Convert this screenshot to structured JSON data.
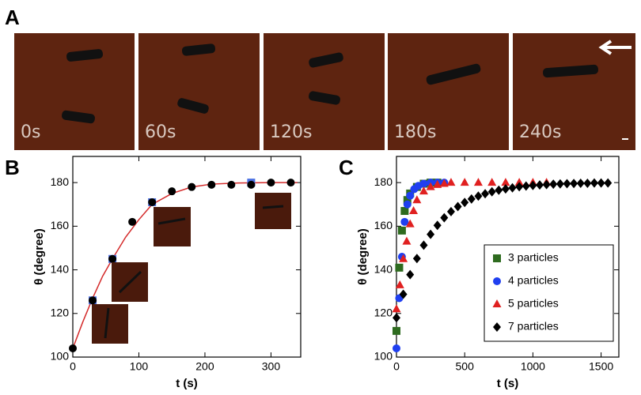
{
  "panel_labels": [
    "A",
    "B",
    "C"
  ],
  "frames": [
    "0s",
    "60s",
    "120s",
    "180s",
    "240s"
  ],
  "chart_data": [
    {
      "type": "scatter",
      "xlabel": "t (s)",
      "ylabel": "θ (degree)",
      "xlim": [
        0,
        345
      ],
      "ylim": [
        100,
        192
      ],
      "xticks": [
        0,
        100,
        200,
        300
      ],
      "yticks": [
        100,
        120,
        140,
        160,
        180
      ],
      "series": [
        {
          "color": "#d42a2a",
          "style": "line",
          "x": [
            0,
            15,
            30,
            45,
            60,
            80,
            100,
            120,
            150,
            180,
            210,
            250,
            300,
            340
          ],
          "values": [
            104,
            116,
            127,
            137,
            145,
            155,
            163,
            170,
            175,
            178,
            179.3,
            179.8,
            180,
            180
          ]
        },
        {
          "color": "#4a6fe3",
          "marker": "square",
          "x": [
            30,
            60,
            120,
            270
          ],
          "values": [
            126,
            145,
            171,
            180
          ]
        },
        {
          "color": "#000000",
          "marker": "circle",
          "x": [
            0,
            30,
            60,
            90,
            120,
            150,
            180,
            210,
            240,
            270,
            300,
            330
          ],
          "values": [
            104,
            126,
            145,
            162,
            171,
            176,
            178,
            179,
            179,
            179,
            180,
            180
          ]
        }
      ]
    },
    {
      "type": "scatter",
      "xlabel": "t (s)",
      "ylabel": "θ (degree)",
      "xlim": [
        0,
        1630
      ],
      "ylim": [
        100,
        192
      ],
      "xticks": [
        0,
        500,
        1000,
        1500
      ],
      "yticks": [
        100,
        120,
        140,
        160,
        180
      ],
      "series": [
        {
          "name": "3 particles",
          "color": "#2e6b1f",
          "marker": "square",
          "x": [
            0,
            20,
            40,
            60,
            80,
            100,
            150,
            200,
            250,
            300
          ],
          "values": [
            112,
            141,
            158,
            167,
            172,
            175,
            178,
            179.5,
            180,
            180
          ]
        },
        {
          "name": "4 particles",
          "color": "#1f3ff0",
          "marker": "circle",
          "x": [
            0,
            20,
            40,
            60,
            80,
            100,
            130,
            160,
            200,
            250,
            300,
            350
          ],
          "values": [
            104,
            127,
            146,
            162,
            170,
            174,
            177,
            178.5,
            179.5,
            180,
            180,
            180
          ]
        },
        {
          "name": "5 particles",
          "color": "#e02020",
          "marker": "triangle",
          "x": [
            0,
            25,
            50,
            75,
            100,
            125,
            150,
            200,
            250,
            300,
            350,
            400,
            500,
            600,
            700,
            800,
            900,
            1000,
            1100
          ],
          "values": [
            122,
            133,
            145,
            153,
            161,
            167,
            172,
            176,
            178,
            179,
            179.5,
            180,
            180,
            180,
            180,
            180,
            180,
            180,
            180
          ]
        },
        {
          "name": "7 particles",
          "color": "#000000",
          "marker": "diamond",
          "x": [
            0,
            50,
            100,
            150,
            200,
            250,
            300,
            350,
            400,
            450,
            500,
            550,
            600,
            650,
            700,
            750,
            800,
            850,
            900,
            950,
            1000,
            1050,
            1100,
            1150,
            1200,
            1250,
            1300,
            1350,
            1400,
            1450,
            1500,
            1550
          ],
          "values": [
            118,
            128.8,
            137.8,
            145.2,
            151.3,
            156.3,
            160.4,
            163.9,
            166.7,
            169,
            170.9,
            172.5,
            173.8,
            174.9,
            175.8,
            176.5,
            177.1,
            177.6,
            178.1,
            178.4,
            178.7,
            178.9,
            179.1,
            179.3,
            179.4,
            179.5,
            179.6,
            179.7,
            179.7,
            179.8,
            179.8,
            179.8
          ]
        }
      ]
    }
  ]
}
